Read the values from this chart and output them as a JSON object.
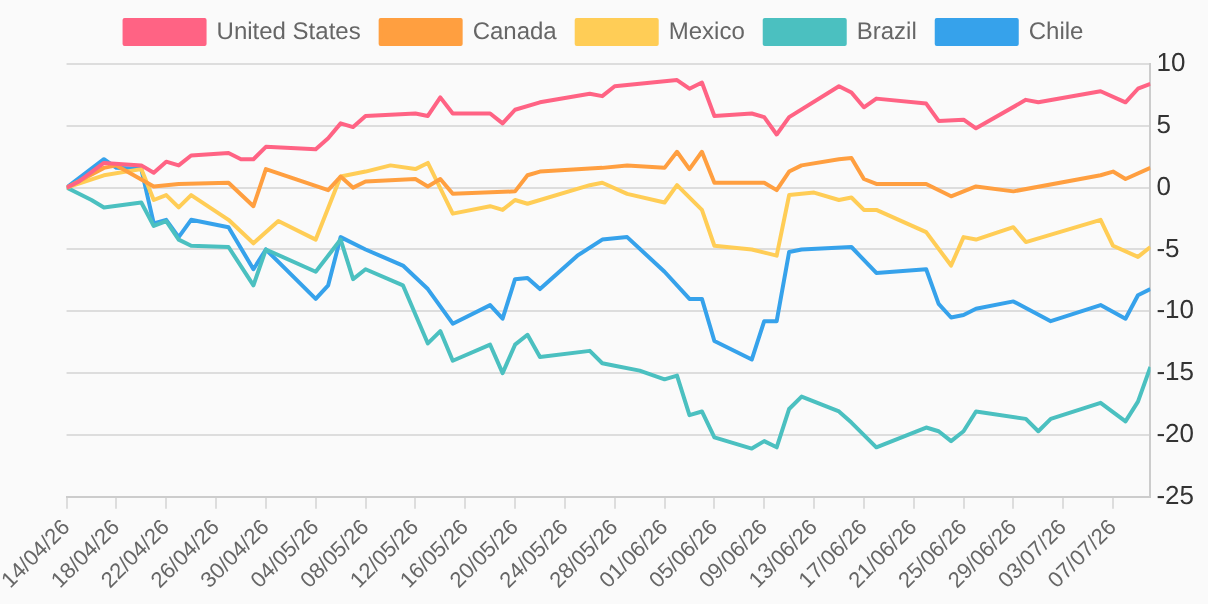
{
  "chart_data": {
    "type": "line",
    "legend": "top",
    "grid": "y",
    "marker": "none",
    "line_style": "solid",
    "xlim": [
      "--04-14",
      "--07-10"
    ],
    "xticks": [
      {
        "value": "--04-14",
        "label": "14/04/26"
      },
      {
        "value": "--04-18",
        "label": "18/04/26"
      },
      {
        "value": "--04-22",
        "label": "22/04/26"
      },
      {
        "value": "--04-26",
        "label": "26/04/26"
      },
      {
        "value": "--04-30",
        "label": "30/04/26"
      },
      {
        "value": "--05-04",
        "label": "04/05/26"
      },
      {
        "value": "--05-08",
        "label": "08/05/26"
      },
      {
        "value": "--05-12",
        "label": "12/05/26"
      },
      {
        "value": "--05-16",
        "label": "16/05/26"
      },
      {
        "value": "--05-20",
        "label": "20/05/26"
      },
      {
        "value": "--05-24",
        "label": "24/05/26"
      },
      {
        "value": "--05-28",
        "label": "28/05/26"
      },
      {
        "value": "--06-01",
        "label": "01/06/26"
      },
      {
        "value": "--06-05",
        "label": "05/06/26"
      },
      {
        "value": "--06-09",
        "label": "09/06/26"
      },
      {
        "value": "--06-13",
        "label": "13/06/26"
      },
      {
        "value": "--06-17",
        "label": "17/06/26"
      },
      {
        "value": "--06-21",
        "label": "21/06/26"
      },
      {
        "value": "--06-25",
        "label": "25/06/26"
      },
      {
        "value": "--06-29",
        "label": "29/06/26"
      },
      {
        "value": "--07-03",
        "label": "03/07/26"
      },
      {
        "value": "--07-07",
        "label": "07/07/26"
      }
    ],
    "ylim": [
      -25,
      10
    ],
    "yticks": [
      -25,
      -20,
      -15,
      -10,
      -5,
      0,
      5,
      10
    ],
    "series": [
      {
        "name": "United States",
        "color": "#ff6384",
        "x": [
          "--04-14",
          "--04-15",
          "--04-17",
          "--04-20",
          "--04-21",
          "--04-22",
          "--04-23",
          "--04-24",
          "--04-27",
          "--04-28",
          "--04-29",
          "--04-30",
          "--05-04",
          "--05-05",
          "--05-06",
          "--05-07",
          "--05-08",
          "--05-12",
          "--05-13",
          "--05-14",
          "--05-15",
          "--05-18",
          "--05-19",
          "--05-20",
          "--05-22",
          "--05-26",
          "--05-27",
          "--05-28",
          "--06-02",
          "--06-03",
          "--06-04",
          "--06-05",
          "--06-08",
          "--06-09",
          "--06-10",
          "--06-11",
          "--06-15",
          "--06-16",
          "--06-17",
          "--06-18",
          "--06-22",
          "--06-23",
          "--06-25",
          "--06-26",
          "--06-30",
          "--07-01",
          "--07-06",
          "--07-08",
          "--07-09",
          "--07-10"
        ],
        "values": [
          0,
          0.5,
          2.0,
          1.8,
          1.2,
          2.1,
          1.8,
          2.6,
          2.8,
          2.3,
          2.3,
          3.3,
          3.1,
          4.0,
          5.2,
          4.9,
          5.8,
          6.0,
          5.8,
          7.3,
          6.0,
          6.0,
          5.2,
          6.3,
          6.9,
          7.6,
          7.4,
          8.2,
          8.7,
          8.0,
          8.5,
          5.8,
          6.0,
          5.7,
          4.3,
          5.7,
          8.2,
          7.7,
          6.5,
          7.2,
          6.8,
          5.4,
          5.5,
          4.8,
          7.1,
          6.9,
          7.8,
          6.9,
          8.0,
          8.4
        ]
      },
      {
        "name": "Canada",
        "color": "#ff9f40",
        "x": [
          "--04-14",
          "--04-17",
          "--04-18",
          "--04-21",
          "--04-23",
          "--04-27",
          "--04-29",
          "--04-30",
          "--05-05",
          "--05-06",
          "--05-07",
          "--05-08",
          "--05-12",
          "--05-13",
          "--05-14",
          "--05-15",
          "--05-20",
          "--05-21",
          "--05-22",
          "--05-27",
          "--05-29",
          "--06-01",
          "--06-02",
          "--06-03",
          "--06-04",
          "--06-05",
          "--06-09",
          "--06-10",
          "--06-11",
          "--06-12",
          "--06-15",
          "--06-16",
          "--06-17",
          "--06-18",
          "--06-22",
          "--06-24",
          "--06-26",
          "--06-29",
          "--07-06",
          "--07-07",
          "--07-08",
          "--07-10"
        ],
        "values": [
          0,
          1.6,
          1.8,
          0.1,
          0.3,
          0.4,
          -1.5,
          1.5,
          -0.2,
          0.9,
          0,
          0.5,
          0.7,
          0.1,
          0.7,
          -0.5,
          -0.3,
          1.0,
          1.3,
          1.6,
          1.8,
          1.6,
          2.9,
          1.5,
          2.9,
          0.4,
          0.4,
          -0.2,
          1.3,
          1.8,
          2.3,
          2.4,
          0.7,
          0.3,
          0.3,
          -0.7,
          0.1,
          -0.3,
          1.0,
          1.3,
          0.7,
          1.6
        ]
      },
      {
        "name": "Mexico",
        "color": "#ffcd56",
        "x": [
          "--04-14",
          "--04-17",
          "--04-20",
          "--04-21",
          "--04-22",
          "--04-23",
          "--04-24",
          "--04-27",
          "--04-29",
          "--05-01",
          "--05-04",
          "--05-06",
          "--05-08",
          "--05-10",
          "--05-12",
          "--05-13",
          "--05-15",
          "--05-18",
          "--05-19",
          "--05-20",
          "--05-21",
          "--05-26",
          "--05-27",
          "--05-29",
          "--06-01",
          "--06-02",
          "--06-04",
          "--06-05",
          "--06-08",
          "--06-10",
          "--06-11",
          "--06-13",
          "--06-15",
          "--06-16",
          "--06-17",
          "--06-18",
          "--06-22",
          "--06-24",
          "--06-25",
          "--06-26",
          "--06-29",
          "--06-30",
          "--07-06",
          "--07-07",
          "--07-09",
          "--07-10"
        ],
        "values": [
          0,
          1.0,
          1.5,
          -1.0,
          -0.6,
          -1.6,
          -0.6,
          -2.6,
          -4.5,
          -2.7,
          -4.2,
          0.9,
          1.3,
          1.8,
          1.5,
          2.0,
          -2.1,
          -1.5,
          -1.8,
          -1.0,
          -1.3,
          0.2,
          0.4,
          -0.5,
          -1.2,
          0.2,
          -1.8,
          -4.7,
          -5.0,
          -5.5,
          -0.6,
          -0.4,
          -1.0,
          -0.8,
          -1.8,
          -1.8,
          -3.6,
          -6.3,
          -4.0,
          -4.2,
          -3.2,
          -4.4,
          -2.6,
          -4.7,
          -5.6,
          -4.8
        ]
      },
      {
        "name": "Brazil",
        "color": "#4bc0c0",
        "x": [
          "--04-14",
          "--04-16",
          "--04-17",
          "--04-20",
          "--04-21",
          "--04-22",
          "--04-23",
          "--04-24",
          "--04-27",
          "--04-29",
          "--04-30",
          "--05-04",
          "--05-06",
          "--05-07",
          "--05-08",
          "--05-11",
          "--05-13",
          "--05-14",
          "--05-15",
          "--05-18",
          "--05-19",
          "--05-20",
          "--05-21",
          "--05-22",
          "--05-26",
          "--05-27",
          "--05-28",
          "--05-30",
          "--06-01",
          "--06-02",
          "--06-03",
          "--06-04",
          "--06-05",
          "--06-08",
          "--06-09",
          "--06-10",
          "--06-11",
          "--06-12",
          "--06-15",
          "--06-16",
          "--06-18",
          "--06-22",
          "--06-23",
          "--06-24",
          "--06-25",
          "--06-26",
          "--06-30",
          "--07-01",
          "--07-02",
          "--07-06",
          "--07-08",
          "--07-09",
          "--07-10"
        ],
        "values": [
          0,
          -1.0,
          -1.6,
          -1.2,
          -3.1,
          -2.7,
          -4.2,
          -4.7,
          -4.8,
          -7.9,
          -5.0,
          -6.8,
          -4.2,
          -7.4,
          -6.6,
          -7.9,
          -12.6,
          -11.6,
          -14.0,
          -12.7,
          -15.0,
          -12.7,
          -11.9,
          -13.7,
          -13.2,
          -14.2,
          -14.4,
          -14.8,
          -15.5,
          -15.2,
          -18.4,
          -18.1,
          -20.2,
          -21.1,
          -20.5,
          -21.0,
          -17.9,
          -16.9,
          -18.1,
          -19.0,
          -21.0,
          -19.4,
          -19.7,
          -20.5,
          -19.7,
          -18.1,
          -18.7,
          -19.7,
          -18.7,
          -17.4,
          -18.9,
          -17.3,
          -14.5
        ]
      },
      {
        "name": "Chile",
        "color": "#36a2eb",
        "x": [
          "--04-14",
          "--04-17",
          "--04-18",
          "--04-20",
          "--04-21",
          "--04-22",
          "--04-23",
          "--04-24",
          "--04-27",
          "--04-29",
          "--04-30",
          "--05-04",
          "--05-05",
          "--05-06",
          "--05-08",
          "--05-11",
          "--05-13",
          "--05-15",
          "--05-18",
          "--05-19",
          "--05-20",
          "--05-21",
          "--05-22",
          "--05-25",
          "--05-27",
          "--05-29",
          "--06-01",
          "--06-03",
          "--06-04",
          "--06-05",
          "--06-08",
          "--06-09",
          "--06-10",
          "--06-11",
          "--06-12",
          "--06-16",
          "--06-18",
          "--06-22",
          "--06-23",
          "--06-24",
          "--06-25",
          "--06-26",
          "--06-29",
          "--07-02",
          "--07-06",
          "--07-08",
          "--07-09",
          "--07-10"
        ],
        "values": [
          0,
          2.3,
          1.6,
          1.5,
          -2.9,
          -2.6,
          -4.0,
          -2.6,
          -3.2,
          -6.6,
          -5.0,
          -9.0,
          -7.9,
          -4.0,
          -5.0,
          -6.3,
          -8.2,
          -11.0,
          -9.5,
          -10.6,
          -7.4,
          -7.3,
          -8.2,
          -5.5,
          -4.2,
          -4.0,
          -6.8,
          -9.0,
          -9.0,
          -12.4,
          -13.9,
          -10.8,
          -10.8,
          -5.2,
          -5.0,
          -4.8,
          -6.9,
          -6.6,
          -9.4,
          -10.5,
          -10.3,
          -9.8,
          -9.2,
          -10.8,
          -9.5,
          -10.6,
          -8.7,
          -8.2
        ]
      }
    ]
  }
}
